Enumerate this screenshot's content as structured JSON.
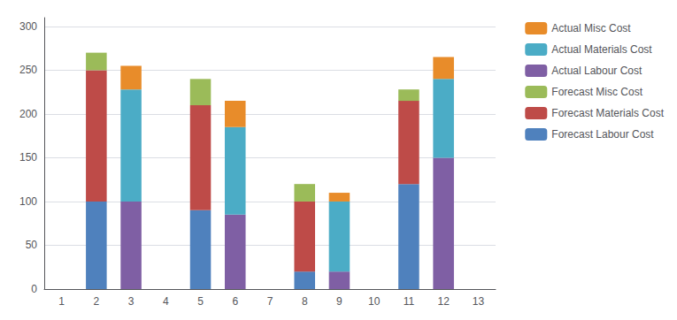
{
  "chart_data": {
    "type": "bar",
    "stacked": true,
    "categories": [
      "1",
      "2",
      "3",
      "4",
      "5",
      "6",
      "7",
      "8",
      "9",
      "10",
      "11",
      "12",
      "13"
    ],
    "series": [
      {
        "name": "Forecast Labour Cost",
        "color": "#4F81BD",
        "values": [
          null,
          100,
          null,
          null,
          90,
          null,
          null,
          20,
          null,
          null,
          120,
          null,
          null
        ]
      },
      {
        "name": "Forecast Materials Cost",
        "color": "#BE4B48",
        "values": [
          null,
          150,
          null,
          null,
          120,
          null,
          null,
          80,
          null,
          null,
          95,
          null,
          null
        ]
      },
      {
        "name": "Forecast Misc Cost",
        "color": "#9BBB59",
        "values": [
          null,
          20,
          null,
          null,
          30,
          null,
          null,
          20,
          null,
          null,
          13,
          null,
          null
        ]
      },
      {
        "name": "Actual Labour Cost",
        "color": "#7F5FA4",
        "values": [
          null,
          null,
          100,
          null,
          null,
          85,
          null,
          null,
          20,
          null,
          null,
          150,
          null
        ]
      },
      {
        "name": "Actual Materials Cost",
        "color": "#4BACC6",
        "values": [
          null,
          null,
          128,
          null,
          null,
          100,
          null,
          null,
          80,
          null,
          null,
          90,
          null
        ]
      },
      {
        "name": "Actual Misc Cost",
        "color": "#E88C2A",
        "values": [
          null,
          null,
          27,
          null,
          null,
          30,
          null,
          null,
          10,
          null,
          null,
          25,
          null
        ]
      }
    ],
    "ylim": [
      0,
      310
    ],
    "yticks": [
      0,
      50,
      100,
      150,
      200,
      250,
      300
    ],
    "grid": true,
    "legend": "upper right"
  }
}
